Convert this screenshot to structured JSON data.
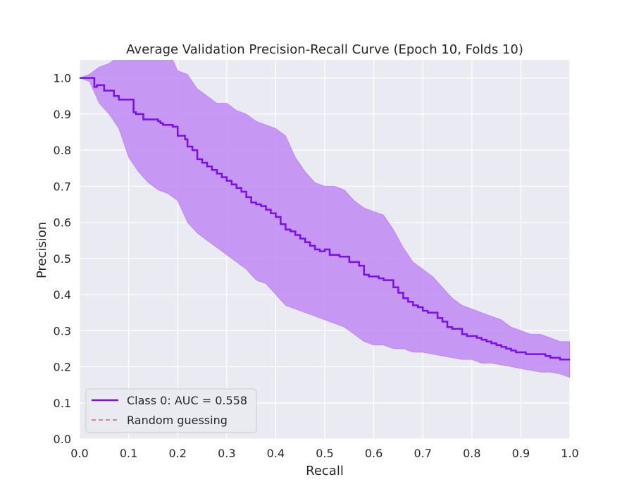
{
  "chart_data": {
    "type": "line",
    "title": "Average Validation Precision-Recall Curve (Epoch 10, Folds 10)",
    "xlabel": "Recall",
    "ylabel": "Precision",
    "xlim": [
      0.0,
      1.0
    ],
    "ylim": [
      0.0,
      1.05
    ],
    "xticks": [
      "0.0",
      "0.1",
      "0.2",
      "0.3",
      "0.4",
      "0.5",
      "0.6",
      "0.7",
      "0.8",
      "0.9",
      "1.0"
    ],
    "yticks": [
      "0.0",
      "0.1",
      "0.2",
      "0.3",
      "0.4",
      "0.5",
      "0.6",
      "0.7",
      "0.8",
      "0.9",
      "1.0"
    ],
    "grid": true,
    "legend_location": "lower-left",
    "colors": {
      "background": "#eaeaf2",
      "grid": "#ffffff",
      "mean_line": "#7a0ef0",
      "band_fill": "#bf8af5",
      "random_line": "#d9646b"
    },
    "series": [
      {
        "name": "Class 0: AUC = 0.558",
        "style": "steps-post",
        "x": [
          0.0,
          0.03,
          0.035,
          0.05,
          0.06,
          0.07,
          0.08,
          0.11,
          0.115,
          0.13,
          0.16,
          0.165,
          0.17,
          0.19,
          0.2,
          0.215,
          0.22,
          0.23,
          0.24,
          0.25,
          0.26,
          0.27,
          0.28,
          0.29,
          0.3,
          0.31,
          0.32,
          0.33,
          0.34,
          0.35,
          0.36,
          0.37,
          0.38,
          0.39,
          0.4,
          0.41,
          0.42,
          0.43,
          0.44,
          0.45,
          0.46,
          0.47,
          0.48,
          0.49,
          0.5,
          0.51,
          0.53,
          0.55,
          0.57,
          0.58,
          0.59,
          0.61,
          0.62,
          0.64,
          0.65,
          0.66,
          0.67,
          0.68,
          0.69,
          0.7,
          0.71,
          0.73,
          0.74,
          0.75,
          0.76,
          0.78,
          0.79,
          0.81,
          0.82,
          0.83,
          0.84,
          0.85,
          0.86,
          0.87,
          0.88,
          0.89,
          0.91,
          0.92,
          0.95,
          0.96,
          0.98,
          1.0
        ],
        "y": [
          1.0,
          0.975,
          0.98,
          0.965,
          0.965,
          0.95,
          0.94,
          0.905,
          0.9,
          0.885,
          0.88,
          0.875,
          0.87,
          0.865,
          0.84,
          0.83,
          0.81,
          0.8,
          0.775,
          0.765,
          0.755,
          0.745,
          0.735,
          0.725,
          0.715,
          0.705,
          0.695,
          0.685,
          0.67,
          0.655,
          0.65,
          0.645,
          0.635,
          0.625,
          0.615,
          0.595,
          0.58,
          0.575,
          0.565,
          0.555,
          0.545,
          0.535,
          0.525,
          0.52,
          0.525,
          0.51,
          0.505,
          0.49,
          0.48,
          0.455,
          0.45,
          0.445,
          0.44,
          0.42,
          0.405,
          0.39,
          0.38,
          0.37,
          0.365,
          0.355,
          0.35,
          0.335,
          0.325,
          0.31,
          0.305,
          0.29,
          0.285,
          0.28,
          0.275,
          0.27,
          0.265,
          0.26,
          0.255,
          0.25,
          0.245,
          0.24,
          0.235,
          0.235,
          0.23,
          0.225,
          0.22,
          0.22
        ]
      },
      {
        "name": "Random guessing",
        "style": "dashed",
        "x": [],
        "y": []
      }
    ],
    "band": {
      "x": [
        0.0,
        0.02,
        0.04,
        0.06,
        0.08,
        0.1,
        0.12,
        0.14,
        0.16,
        0.18,
        0.2,
        0.22,
        0.24,
        0.26,
        0.28,
        0.3,
        0.32,
        0.34,
        0.36,
        0.38,
        0.4,
        0.42,
        0.44,
        0.46,
        0.48,
        0.5,
        0.52,
        0.54,
        0.56,
        0.58,
        0.6,
        0.62,
        0.64,
        0.66,
        0.68,
        0.7,
        0.72,
        0.74,
        0.76,
        0.78,
        0.8,
        0.82,
        0.84,
        0.86,
        0.88,
        0.9,
        0.92,
        0.94,
        0.96,
        0.98,
        1.0
      ],
      "upper": [
        1.0,
        1.01,
        1.03,
        1.04,
        1.06,
        1.08,
        1.1,
        1.09,
        1.1,
        1.08,
        1.02,
        1.01,
        0.97,
        0.95,
        0.93,
        0.93,
        0.91,
        0.9,
        0.88,
        0.87,
        0.86,
        0.84,
        0.78,
        0.74,
        0.71,
        0.7,
        0.7,
        0.69,
        0.66,
        0.64,
        0.63,
        0.62,
        0.58,
        0.53,
        0.49,
        0.47,
        0.45,
        0.42,
        0.39,
        0.37,
        0.36,
        0.35,
        0.34,
        0.33,
        0.31,
        0.3,
        0.29,
        0.29,
        0.28,
        0.27,
        0.27
      ],
      "lower": [
        1.0,
        0.99,
        0.93,
        0.9,
        0.86,
        0.78,
        0.74,
        0.71,
        0.69,
        0.68,
        0.66,
        0.6,
        0.57,
        0.55,
        0.53,
        0.51,
        0.49,
        0.47,
        0.44,
        0.43,
        0.4,
        0.37,
        0.36,
        0.35,
        0.34,
        0.33,
        0.32,
        0.31,
        0.29,
        0.27,
        0.26,
        0.26,
        0.25,
        0.25,
        0.24,
        0.24,
        0.235,
        0.23,
        0.225,
        0.22,
        0.22,
        0.21,
        0.21,
        0.205,
        0.2,
        0.195,
        0.19,
        0.185,
        0.185,
        0.18,
        0.17
      ]
    }
  }
}
